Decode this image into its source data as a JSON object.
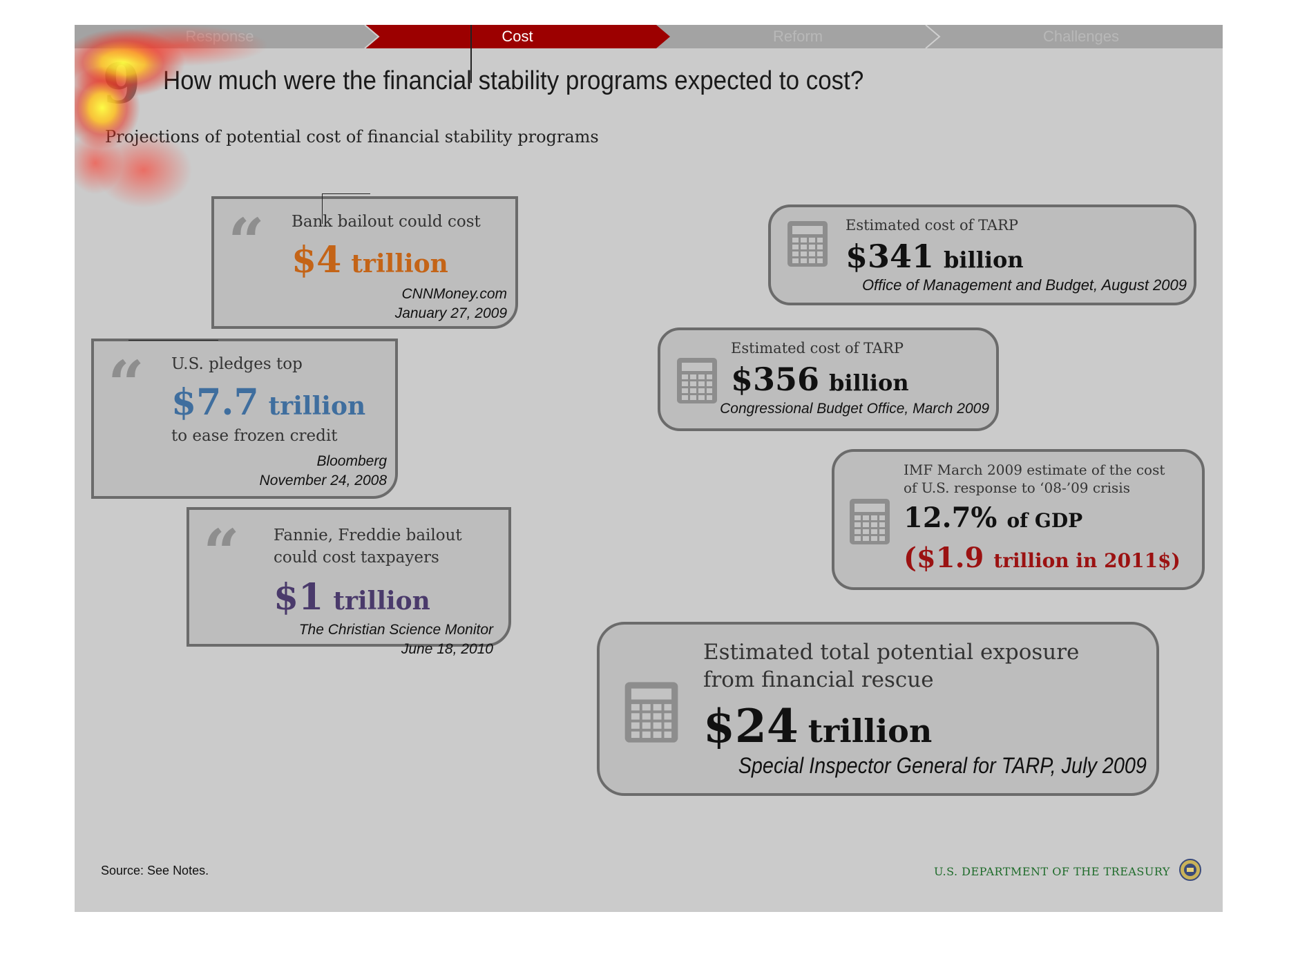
{
  "nav": {
    "tabs": [
      "Response",
      "Cost",
      "Reform",
      "Challenges"
    ],
    "active_tab": "Cost"
  },
  "header": {
    "number": "9",
    "title": "How much were the financial stability programs expected to cost?",
    "subtitle": "Projections of potential cost of financial stability programs"
  },
  "quotes": [
    {
      "lead": "Bank bailout could cost",
      "amount": "$4",
      "unit": "trillion",
      "source": "CNNMoney.com",
      "date": "January 27, 2009",
      "color": "#c46417"
    },
    {
      "lead": "U.S. pledges top",
      "amount": "$7.7",
      "unit": "trillion",
      "trail": "to ease frozen credit",
      "source": "Bloomberg",
      "date": "November 24, 2008",
      "color": "#3f6e9e"
    },
    {
      "lead_line1": "Fannie, Freddie bailout",
      "lead_line2": "could cost taxpayers",
      "amount": "$1",
      "unit": "trillion",
      "source": "The Christian Science Monitor",
      "date": "June 18, 2010",
      "color": "#4a3a6b"
    }
  ],
  "estimates": [
    {
      "lead": "Estimated cost of TARP",
      "amount": "$341",
      "unit": "billion",
      "source": "Office of Management and Budget, August 2009"
    },
    {
      "lead": "Estimated cost of TARP",
      "amount": "$356",
      "unit": "billion",
      "source": "Congressional Budget Office, March 2009"
    },
    {
      "lead_line1": "IMF March 2009 estimate of the cost",
      "lead_line2": "of U.S. response to ‘08-’09 crisis",
      "amount": "12.7%",
      "unit": "of GDP",
      "sub_amount": "($1.9",
      "sub_unit": "trillion in 2011$)",
      "sub_color": "#9b1212"
    },
    {
      "lead_line1": "Estimated total potential exposure",
      "lead_line2": "from financial rescue",
      "amount": "$24",
      "unit": "trillion",
      "source": "Special Inspector General for TARP, July 2009"
    }
  ],
  "footer": {
    "source": "Source: See Notes.",
    "agency": "U.S. DEPARTMENT OF THE TREASURY"
  },
  "icons": [
    "quote-mark-icon",
    "calculator-icon",
    "treasury-seal-icon"
  ],
  "colors": {
    "nav_active": "#9c0000",
    "nav_bg": "#a3a3a3",
    "background": "#cbcbcb"
  }
}
